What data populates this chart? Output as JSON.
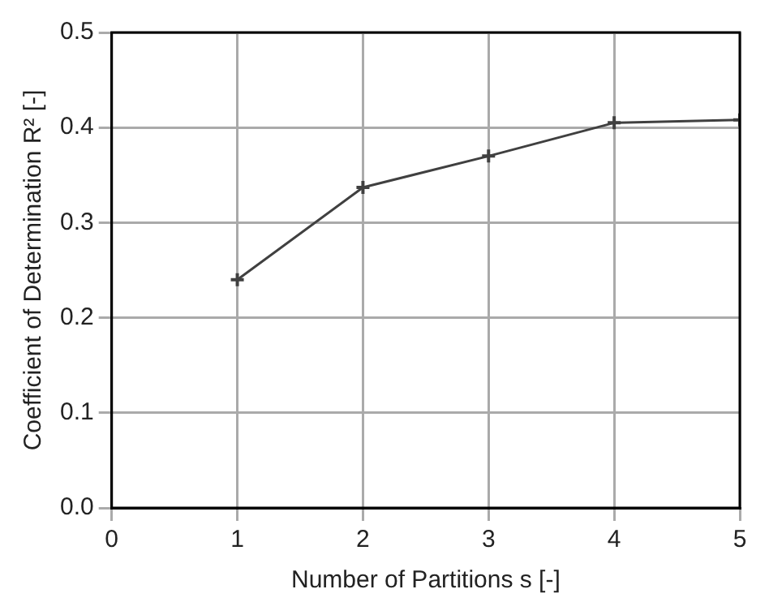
{
  "chart_data": {
    "type": "line",
    "xlabel": "Number of Partitions s [-]",
    "ylabel": "Coefficient of Determination R² [-]",
    "x": [
      1,
      2,
      3,
      4,
      5
    ],
    "series": [
      {
        "color": "#404040",
        "values": [
          0.24,
          0.337,
          0.37,
          0.405,
          0.408
        ]
      }
    ],
    "xlim": [
      0,
      5
    ],
    "xticks": [
      0,
      1,
      2,
      3,
      4,
      5
    ],
    "ylim": [
      0,
      0.5
    ],
    "yticks": [
      {
        "value": 0,
        "label": "0.0"
      },
      0.1,
      0.2,
      0.3,
      0.4,
      0.5
    ],
    "grid": true,
    "legend": false,
    "marker": "cross",
    "line_style": "solid"
  }
}
